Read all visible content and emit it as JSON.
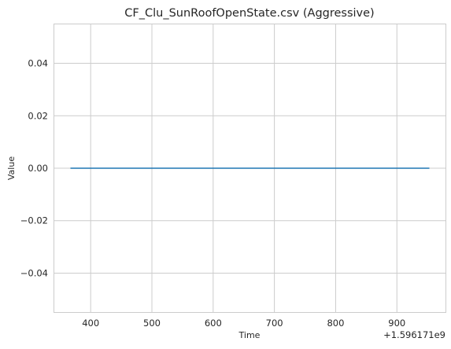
{
  "chart_data": {
    "type": "line",
    "title": "CF_Clu_SunRoofOpenState.csv (Aggressive)",
    "xlabel": "Time",
    "ylabel": "Value",
    "x_offset_label": "+1.596171e9",
    "xlim": [
      340,
      980
    ],
    "ylim": [
      -0.055,
      0.055
    ],
    "x_ticks": [
      400,
      500,
      600,
      700,
      800,
      900
    ],
    "x_tick_labels": [
      "400",
      "500",
      "600",
      "700",
      "800",
      "900"
    ],
    "y_ticks": [
      -0.04,
      -0.02,
      0.0,
      0.02,
      0.04
    ],
    "y_tick_labels": [
      "−0.04",
      "−0.02",
      "0.00",
      "0.02",
      "0.04"
    ],
    "grid": true,
    "series": [
      {
        "x": [
          368,
          952
        ],
        "y": [
          0.0,
          0.0
        ],
        "color": "#1f77b4"
      }
    ]
  }
}
